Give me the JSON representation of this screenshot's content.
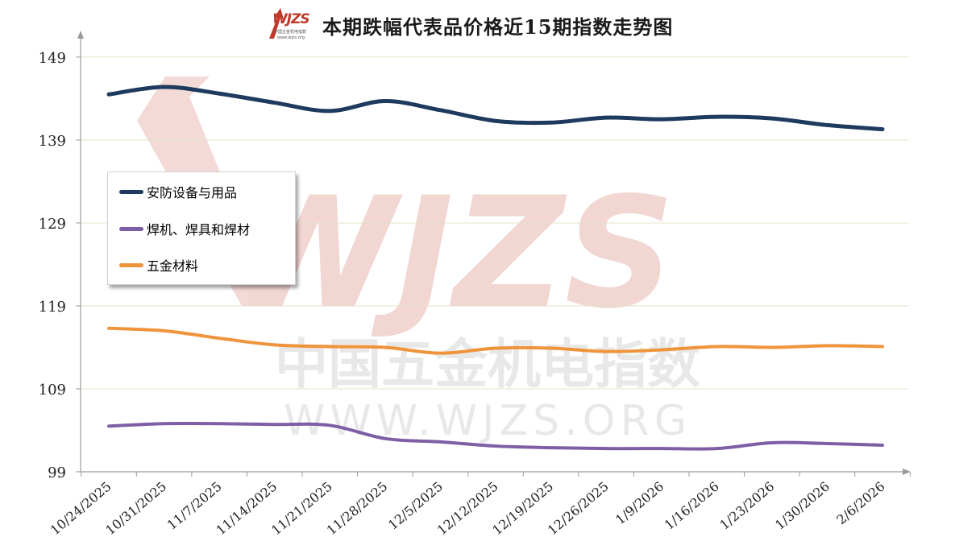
{
  "title": "本期跌幅代表品价格近15期指数走势图",
  "logo": {
    "text": "WJZS",
    "sub1": "中国五金机电指数",
    "sub2": "www.wjzs.org"
  },
  "watermark": {
    "logo": "WJZS",
    "cn": "中国五金机电指数",
    "url": "WWW.WJZS.ORG"
  },
  "colors": {
    "grid": "#e3e3c8",
    "axis": "#9a9a9a",
    "watermark": "#f2d6d2",
    "watermark_text": "#e8e8e8"
  },
  "chart_data": {
    "type": "line",
    "title": "本期跌幅代表品价格近15期指数走势图",
    "categories": [
      "10/24/2025",
      "10/31/2025",
      "11/7/2025",
      "11/14/2025",
      "11/21/2025",
      "11/28/2025",
      "12/5/2025",
      "12/12/2025",
      "12/19/2025",
      "12/26/2025",
      "1/9/2026",
      "1/16/2026",
      "1/23/2026",
      "1/30/2026",
      "2/6/2026"
    ],
    "yticks": [
      99,
      109,
      119,
      129,
      139,
      149
    ],
    "ylim": [
      99,
      152
    ],
    "grid": true,
    "legend_position": "left",
    "series": [
      {
        "name": "安防设备与用品",
        "color": "#1f3a5f",
        "values": [
          144.5,
          145.4,
          144.6,
          143.5,
          142.5,
          143.7,
          142.6,
          141.3,
          141.1,
          141.7,
          141.5,
          141.8,
          141.6,
          140.8,
          140.3
        ]
      },
      {
        "name": "焊机、焊具和焊材",
        "color": "#7e5ea5",
        "values": [
          104.5,
          104.8,
          104.8,
          104.7,
          104.6,
          103.0,
          102.6,
          102.1,
          101.9,
          101.8,
          101.8,
          101.8,
          102.5,
          102.4,
          102.2
        ]
      },
      {
        "name": "五金材料",
        "color": "#f0943c",
        "values": [
          116.3,
          116.0,
          115.1,
          114.3,
          114.1,
          114.0,
          113.3,
          113.9,
          113.9,
          113.5,
          113.7,
          114.1,
          114.0,
          114.2,
          114.1
        ]
      }
    ]
  }
}
